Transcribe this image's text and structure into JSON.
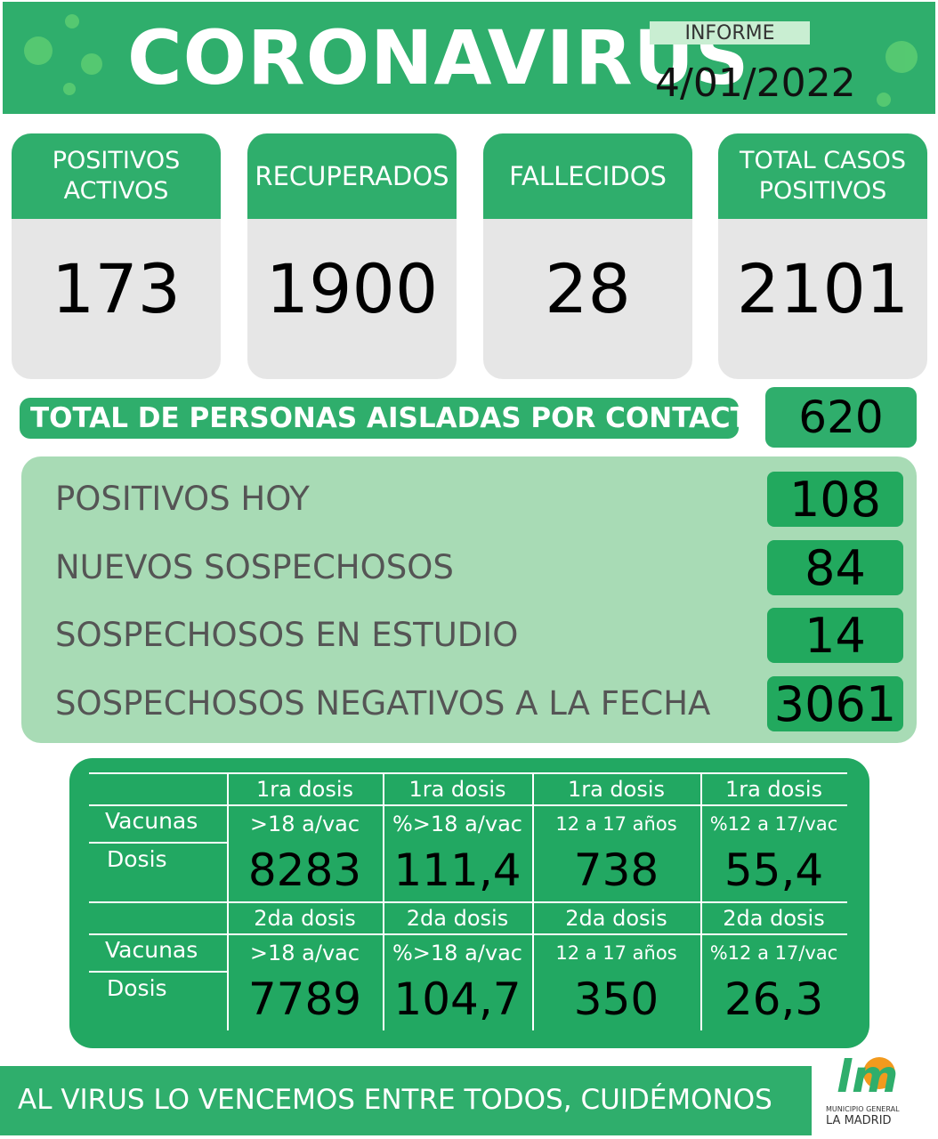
{
  "header": {
    "title": "CORONAVIRUS",
    "informe": "INFORME",
    "date": "4/01/2022"
  },
  "cards": [
    {
      "label": [
        "POSITIVOS",
        "ACTIVOS"
      ],
      "value": "173"
    },
    {
      "label": [
        "RECUPERADOS"
      ],
      "value": "1900"
    },
    {
      "label": [
        "FALLECIDOS"
      ],
      "value": "28"
    },
    {
      "label": [
        "TOTAL CASOS",
        "POSITIVOS"
      ],
      "value": "2101"
    }
  ],
  "isolated": {
    "label": "TOTAL DE PERSONAS AISLADAS POR CONTACTO",
    "value": "620"
  },
  "stats": [
    {
      "label": "POSITIVOS HOY",
      "value": "108"
    },
    {
      "label": "NUEVOS SOSPECHOSOS",
      "value": "84"
    },
    {
      "label": "SOSPECHOSOS EN ESTUDIO",
      "value": "14"
    },
    {
      "label": "SOSPECHOSOS NEGATIVOS A LA FECHA",
      "value": "3061"
    }
  ],
  "vaccines": [
    {
      "headers": [
        "1ra dosis",
        "1ra dosis",
        "1ra dosis",
        "1ra dosis"
      ],
      "subheaders": [
        ">18 a/vac",
        "%>18 a/vac",
        "12 a 17 años",
        "%12 a 17/vac"
      ],
      "row_label": "Vacunas",
      "dose_label": "Dosis",
      "values": [
        "8283",
        "111,4",
        "738",
        "55,4"
      ]
    },
    {
      "headers": [
        "2da dosis",
        "2da dosis",
        "2da dosis",
        "2da dosis"
      ],
      "subheaders": [
        ">18 a/vac",
        "%>18 a/vac",
        "12 a 17 años",
        "%12 a 17/vac"
      ],
      "row_label": "Vacunas",
      "dose_label": "Dosis",
      "values": [
        "7789",
        "104,7",
        "350",
        "26,3"
      ]
    }
  ],
  "footer": {
    "slogan": "AL VIRUS LO VENCEMOS ENTRE TODOS, CUIDÉMONOS",
    "logo": "lm",
    "logo_sub1": "MUNICIPIO GENERAL",
    "logo_sub2": "LA MADRID"
  }
}
